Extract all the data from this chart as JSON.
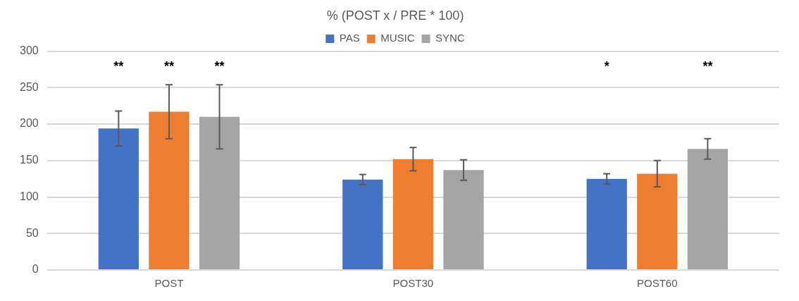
{
  "chart_data": {
    "type": "bar",
    "title": "% (POST x / PRE * 100)",
    "categories": [
      "POST",
      "POST30",
      "POST60"
    ],
    "series": [
      {
        "name": "PAS",
        "color": "#4472c4",
        "values": [
          194,
          124,
          125
        ],
        "errors": [
          24,
          7,
          7
        ]
      },
      {
        "name": "MUSIC",
        "color": "#ed7d31",
        "values": [
          217,
          152,
          132
        ],
        "errors": [
          37,
          16,
          18
        ]
      },
      {
        "name": "SYNC",
        "color": "#a5a5a5",
        "values": [
          210,
          137,
          166
        ],
        "errors": [
          44,
          14,
          14
        ]
      }
    ],
    "annotations": [
      "**",
      "**",
      "**",
      "*",
      "**"
    ],
    "ylim": [
      0,
      300
    ],
    "yticks": [
      0,
      50,
      100,
      150,
      200,
      250,
      300
    ],
    "grid": "y",
    "legend": "top"
  }
}
